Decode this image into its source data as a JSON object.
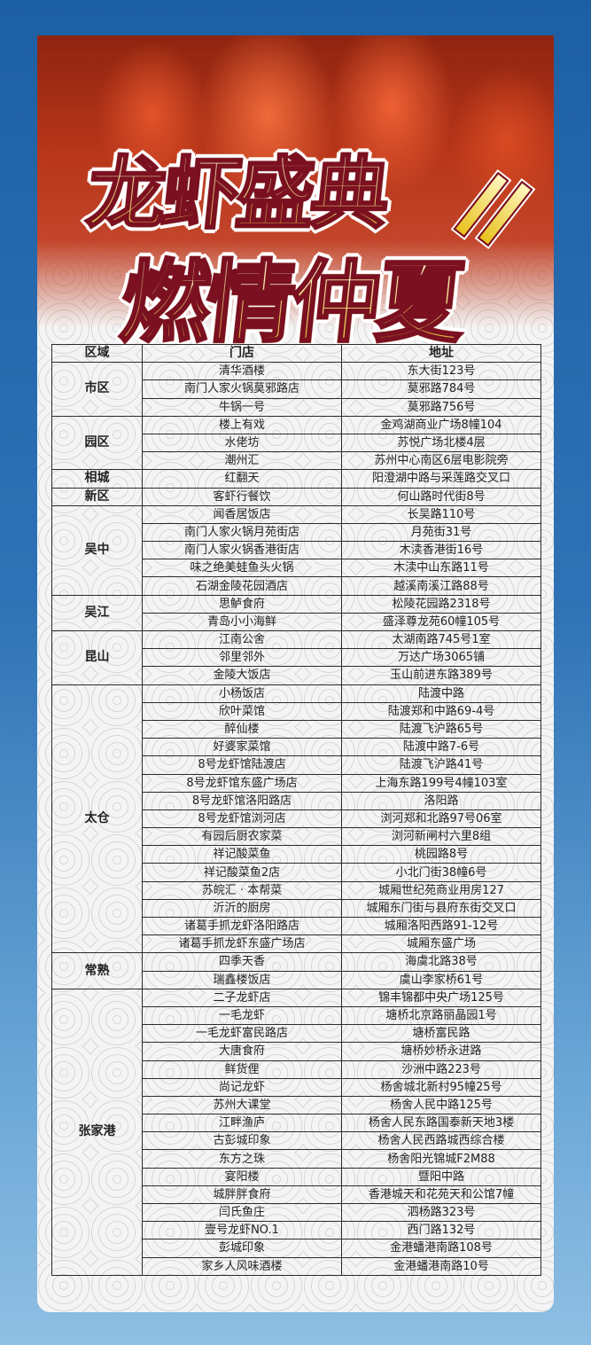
{
  "poster": {
    "title_line1": "龙虾盛典",
    "title_line2": "燃情仲夏",
    "colors": {
      "background": "#2f73b6",
      "title_fill": "#f5dc5a",
      "title_stroke": "#7a1020",
      "table_border": "#2b2b2b"
    }
  },
  "table": {
    "headers": {
      "region": "区域",
      "store": "门店",
      "address": "地址"
    },
    "regions": [
      {
        "name": "市区",
        "stores": [
          {
            "name": "清华酒楼",
            "address": "东大街123号"
          },
          {
            "name": "南门人家火锅莫邪路店",
            "address": "莫邪路784号"
          },
          {
            "name": "牛锅一号",
            "address": "莫邪路756号"
          }
        ]
      },
      {
        "name": "园区",
        "stores": [
          {
            "name": "楼上有戏",
            "address": "金鸡湖商业广场8幢104"
          },
          {
            "name": "水佬坊",
            "address": "苏悦广场北楼4层"
          },
          {
            "name": "潮州汇",
            "address": "苏州中心南区6层电影院旁"
          }
        ]
      },
      {
        "name": "相城",
        "stores": [
          {
            "name": "红翻天",
            "address": "阳澄湖中路与采莲路交叉口"
          }
        ]
      },
      {
        "name": "新区",
        "stores": [
          {
            "name": "客虾行餐饮",
            "address": "何山路时代街8号"
          }
        ]
      },
      {
        "name": "吴中",
        "stores": [
          {
            "name": "闻香居饭店",
            "address": "长吴路110号"
          },
          {
            "name": "南门人家火锅月苑街店",
            "address": "月苑街31号"
          },
          {
            "name": "南门人家火锅香港街店",
            "address": "木渎香港街16号"
          },
          {
            "name": "味之绝美蛙鱼头火锅",
            "address": "木渎中山东路11号"
          },
          {
            "name": "石湖金陵花园酒店",
            "address": "越溪南溪江路88号"
          }
        ]
      },
      {
        "name": "吴江",
        "stores": [
          {
            "name": "思鲈食府",
            "address": "松陵花园路2318号"
          },
          {
            "name": "青岛小小海鲜",
            "address": "盛泽尊龙苑60幢105号"
          }
        ]
      },
      {
        "name": "昆山",
        "stores": [
          {
            "name": "江南公舍",
            "address": "太湖南路745号1室"
          },
          {
            "name": "邻里邻外",
            "address": "万达广场3065铺"
          },
          {
            "name": "金陵大饭店",
            "address": "玉山前进东路389号"
          }
        ]
      },
      {
        "name": "太仓",
        "stores": [
          {
            "name": "小杨饭店",
            "address": "陆渡中路"
          },
          {
            "name": "欣叶菜馆",
            "address": "陆渡郑和中路69-4号"
          },
          {
            "name": "醉仙楼",
            "address": "陆渡飞沪路65号"
          },
          {
            "name": "好婆家菜馆",
            "address": "陆渡中路7-6号"
          },
          {
            "name": "8号龙虾馆陆渡店",
            "address": "陆渡飞沪路41号"
          },
          {
            "name": "8号龙虾馆东盛广场店",
            "address": "上海东路199号4幢103室"
          },
          {
            "name": "8号龙虾馆洛阳路店",
            "address": "洛阳路"
          },
          {
            "name": "8号龙虾馆浏河店",
            "address": "浏河郑和北路97号06室"
          },
          {
            "name": "有园后厨农家菜",
            "address": "浏河新闸村六里8组"
          },
          {
            "name": "祥记酸菜鱼",
            "address": "桃园路8号"
          },
          {
            "name": "祥记酸菜鱼2店",
            "address": "小北门街38幢6号"
          },
          {
            "name": "苏皖汇 · 本帮菜",
            "address": "城厢世纪苑商业用房127"
          },
          {
            "name": "沂沂的厨房",
            "address": "城厢东门街与县府东街交叉口"
          },
          {
            "name": "诸葛手抓龙虾洛阳路店",
            "address": "城厢洛阳西路91-12号"
          },
          {
            "name": "诸葛手抓龙虾东盛广场店",
            "address": "城厢东盛广场"
          }
        ]
      },
      {
        "name": "常熟",
        "stores": [
          {
            "name": "四季天香",
            "address": "海虞北路38号"
          },
          {
            "name": "瑞鑫楼饭店",
            "address": "虞山李家桥61号"
          }
        ]
      },
      {
        "name": "张家港",
        "stores": [
          {
            "name": "二子龙虾店",
            "address": "锦丰锦都中央广场125号"
          },
          {
            "name": "一毛龙虾",
            "address": "塘桥北京路丽晶园1号"
          },
          {
            "name": "一毛龙虾富民路店",
            "address": "塘桥富民路"
          },
          {
            "name": "大唐食府",
            "address": "塘桥妙桥永进路"
          },
          {
            "name": "鲜货俚",
            "address": "沙洲中路223号"
          },
          {
            "name": "尚记龙虾",
            "address": "杨舍城北新村95幢25号"
          },
          {
            "name": "苏州大课堂",
            "address": "杨舍人民中路125号"
          },
          {
            "name": "江畔渔庐",
            "address": "杨舍人民东路国泰新天地3楼"
          },
          {
            "name": "古彭城印象",
            "address": "杨舍人民西路城西综合楼"
          },
          {
            "name": "东方之珠",
            "address": "杨舍阳光锦城F2M88"
          },
          {
            "name": "宴阳楼",
            "address": "暨阳中路"
          },
          {
            "name": "城胖胖食府",
            "address": "香港城天和花苑天和公馆7幢"
          },
          {
            "name": "闫氏鱼庄",
            "address": "泗杨路323号"
          },
          {
            "name": "壹号龙虾NO.1",
            "address": "西门路132号"
          },
          {
            "name": "彭城印象",
            "address": "金港蟠港南路108号"
          },
          {
            "name": "家乡人风味酒楼",
            "address": "金港蟠港南路10号"
          }
        ]
      }
    ]
  }
}
